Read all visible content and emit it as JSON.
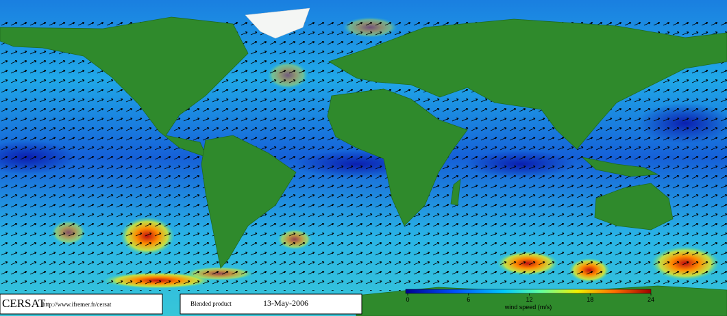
{
  "logo": "CERSAT",
  "url": "http://www.ifremer.fr/cersat",
  "product": "Blended product",
  "date": "13-May-2006",
  "colorbar": {
    "label": "wind speed (m/s)",
    "lim": [
      0,
      24
    ],
    "ticks": [
      0,
      6,
      12,
      18,
      24
    ]
  }
}
